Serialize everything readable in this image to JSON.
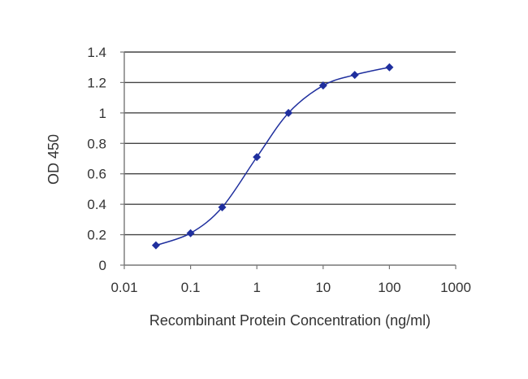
{
  "chart_data": {
    "type": "line",
    "title": "",
    "xlabel": "Recombinant Protein Concentration (ng/ml)",
    "ylabel": "OD 450",
    "xscale": "log",
    "xlim": [
      0.01,
      1000
    ],
    "ylim": [
      0,
      1.4
    ],
    "xticks": [
      "0.01",
      "0.1",
      "1",
      "10",
      "100",
      "1000"
    ],
    "yticks": [
      "0",
      "0.2",
      "0.4",
      "0.6",
      "0.8",
      "1",
      "1.2",
      "1.4"
    ],
    "grid": "horizontal",
    "legend": "none",
    "series": [
      {
        "color": "#1f2f9e",
        "x": [
          0.03,
          0.1,
          0.3,
          1,
          3,
          10,
          30,
          100
        ],
        "y": [
          0.13,
          0.21,
          0.38,
          0.71,
          1.0,
          1.18,
          1.25,
          1.3
        ]
      }
    ]
  },
  "colors": {
    "gridline": "#444444",
    "axis": "#777777",
    "series": "#1f2f9e",
    "text": "#333333"
  }
}
